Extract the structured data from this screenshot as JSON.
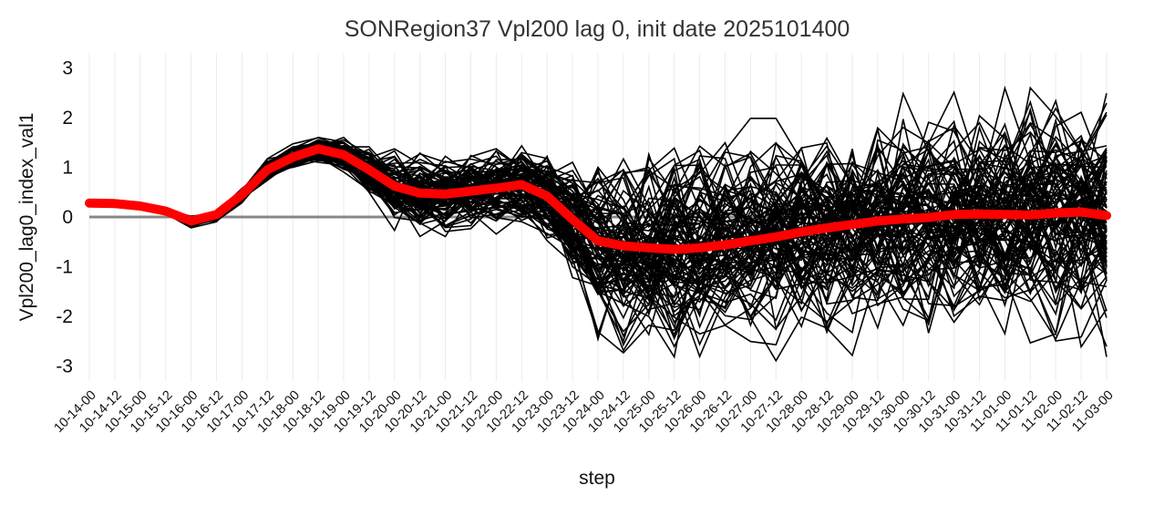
{
  "chart_data": {
    "type": "line",
    "title": "SONRegion37 Vpl200 lag 0, init date 2025101400",
    "xlabel": "step",
    "ylabel": "Vpl200_lag0_index_val1",
    "ylim": [
      -3.3,
      3.3
    ],
    "yticks": [
      -3,
      -2,
      -1,
      0,
      1,
      2,
      3
    ],
    "grid": "vertical",
    "zero_line": 0,
    "categories": [
      "10-14-00",
      "10-14-12",
      "10-15-00",
      "10-15-12",
      "10-16-00",
      "10-16-12",
      "10-17-00",
      "10-17-12",
      "10-18-00",
      "10-18-12",
      "10-19-00",
      "10-19-12",
      "10-20-00",
      "10-20-12",
      "10-21-00",
      "10-21-12",
      "10-22-00",
      "10-22-12",
      "10-23-00",
      "10-23-12",
      "10-24-00",
      "10-24-12",
      "10-25-00",
      "10-25-12",
      "10-26-00",
      "10-26-12",
      "10-27-00",
      "10-27-12",
      "10-28-00",
      "10-28-12",
      "10-29-00",
      "10-29-12",
      "10-30-00",
      "10-30-12",
      "10-31-00",
      "10-31-12",
      "11-01-00",
      "11-01-12",
      "11-02-00",
      "11-02-12",
      "11-03-00"
    ],
    "mean_series": {
      "color": "#ff0000",
      "values": [
        0.28,
        0.27,
        0.22,
        0.12,
        -0.08,
        0.05,
        0.45,
        0.95,
        1.2,
        1.37,
        1.25,
        0.95,
        0.62,
        0.48,
        0.46,
        0.52,
        0.58,
        0.65,
        0.42,
        -0.05,
        -0.48,
        -0.58,
        -0.62,
        -0.65,
        -0.62,
        -0.56,
        -0.48,
        -0.4,
        -0.3,
        -0.22,
        -0.15,
        -0.08,
        -0.04,
        -0.01,
        0.05,
        0.06,
        0.05,
        0.04,
        0.08,
        0.1,
        0.03
      ]
    },
    "ensemble": {
      "color": "#000000",
      "member_count": 100,
      "shape": {
        "base": [
          0.28,
          0.27,
          0.22,
          0.12,
          -0.1,
          0.03,
          0.45,
          0.95,
          1.2,
          1.35,
          1.25,
          0.95,
          0.62,
          0.48,
          0.46,
          0.52,
          0.58,
          0.65,
          0.42,
          -0.05,
          -0.48,
          -0.58,
          -0.62,
          -0.65,
          -0.62,
          -0.56,
          -0.48,
          -0.4,
          -0.3,
          -0.22,
          -0.15,
          -0.08,
          -0.04,
          -0.01,
          0.05,
          0.06,
          0.05,
          0.04,
          0.08,
          0.1,
          0.03
        ],
        "spread": [
          0.01,
          0.01,
          0.01,
          0.02,
          0.06,
          0.06,
          0.07,
          0.1,
          0.12,
          0.14,
          0.16,
          0.25,
          0.38,
          0.42,
          0.4,
          0.4,
          0.4,
          0.42,
          0.5,
          0.65,
          0.8,
          0.95,
          1.0,
          1.02,
          1.02,
          1.02,
          1.02,
          1.02,
          1.02,
          1.05,
          1.08,
          1.1,
          1.12,
          1.12,
          1.12,
          1.12,
          1.12,
          1.12,
          1.15,
          1.15,
          1.15
        ]
      }
    }
  }
}
